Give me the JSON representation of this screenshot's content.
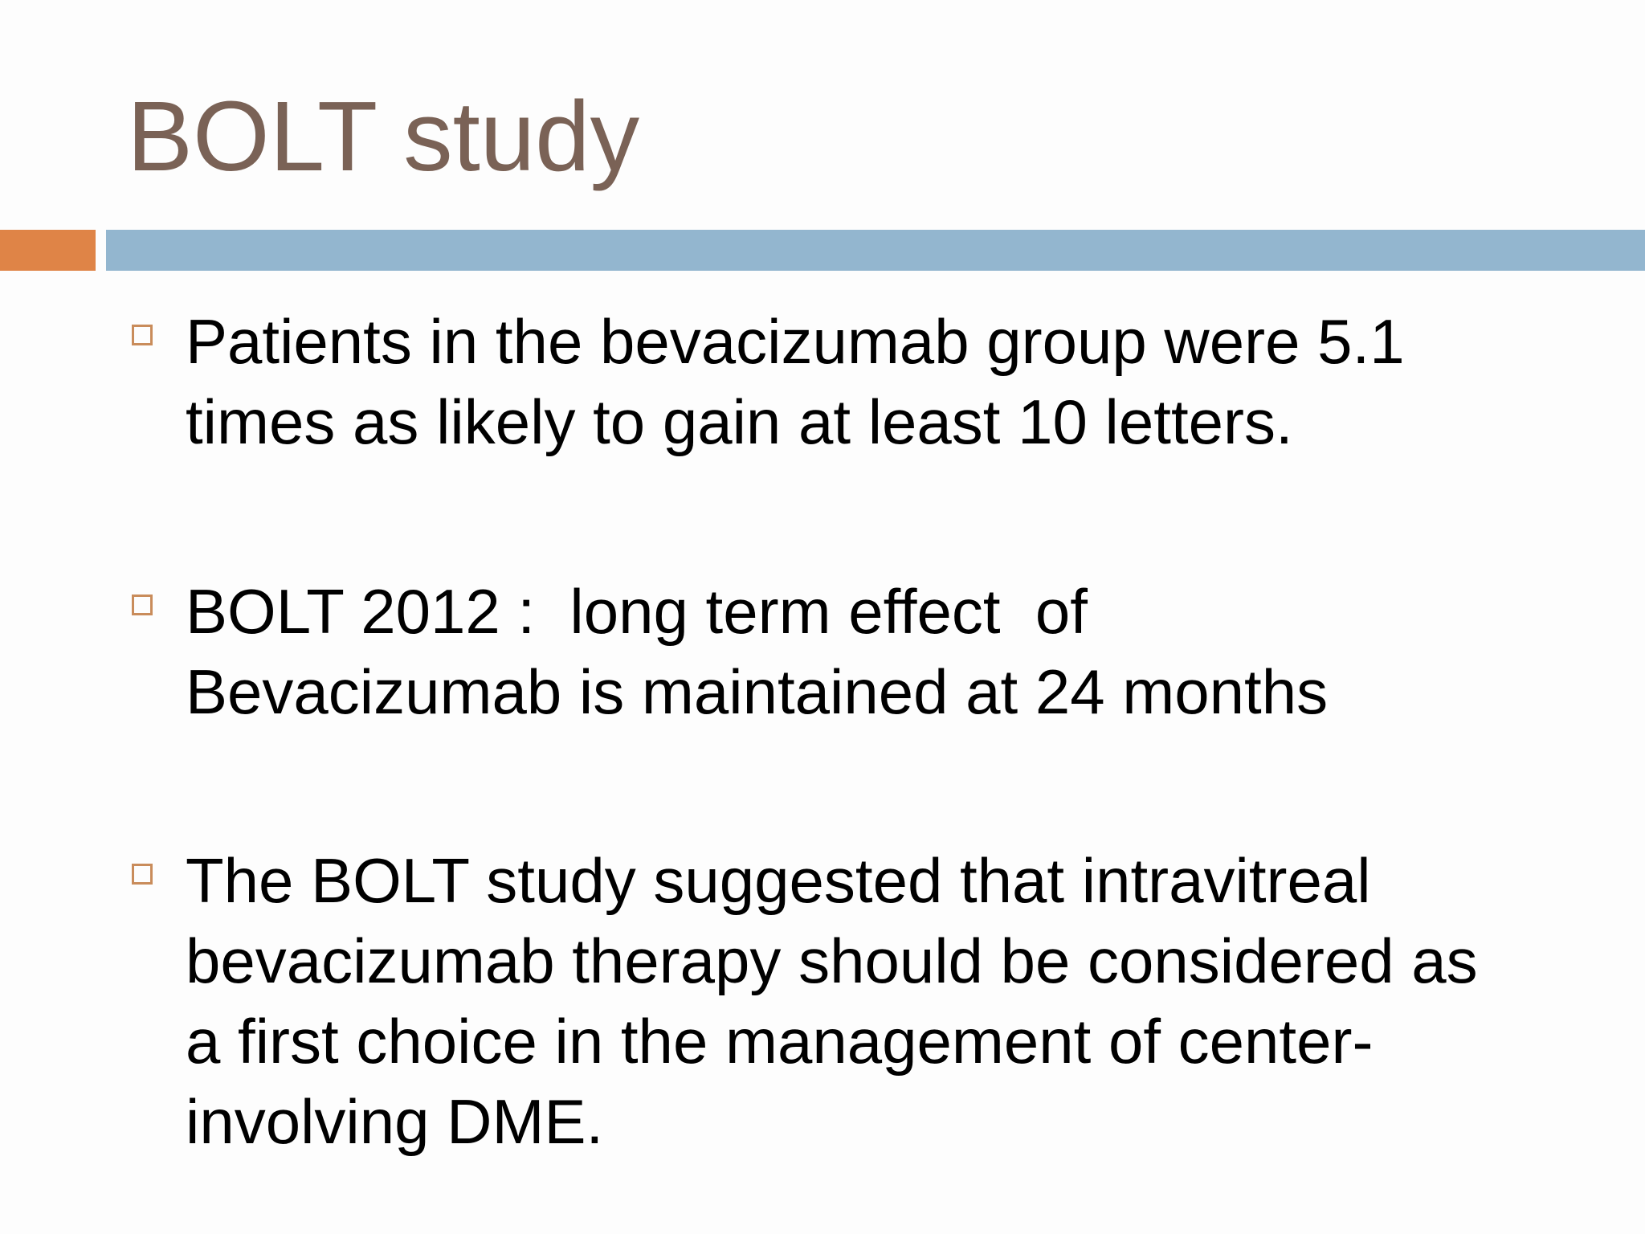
{
  "slide": {
    "title": "BOLT study",
    "colors": {
      "title": "#7a6256",
      "accent_bar": "#df8447",
      "rule_bar": "#93b6cf",
      "bullet_marker": "#c98c5b",
      "body_text": "#000000"
    },
    "bullets": [
      {
        "marker_icon": "hollow-square-bullet-icon",
        "lines": [
          "Patients in the bevacizumab group were 5.1",
          "times as likely to gain at least 10 letters."
        ]
      },
      {
        "marker_icon": "hollow-square-bullet-icon",
        "lines": [
          "BOLT 2012 :  long term effect  of",
          "Bevacizumab is maintained at 24 months"
        ]
      },
      {
        "marker_icon": "hollow-square-bullet-icon",
        "lines": [
          "The BOLT study suggested that intravitreal",
          "bevacizumab therapy should be considered as",
          "a first choice in the management of center-",
          "involving DME."
        ]
      }
    ]
  }
}
